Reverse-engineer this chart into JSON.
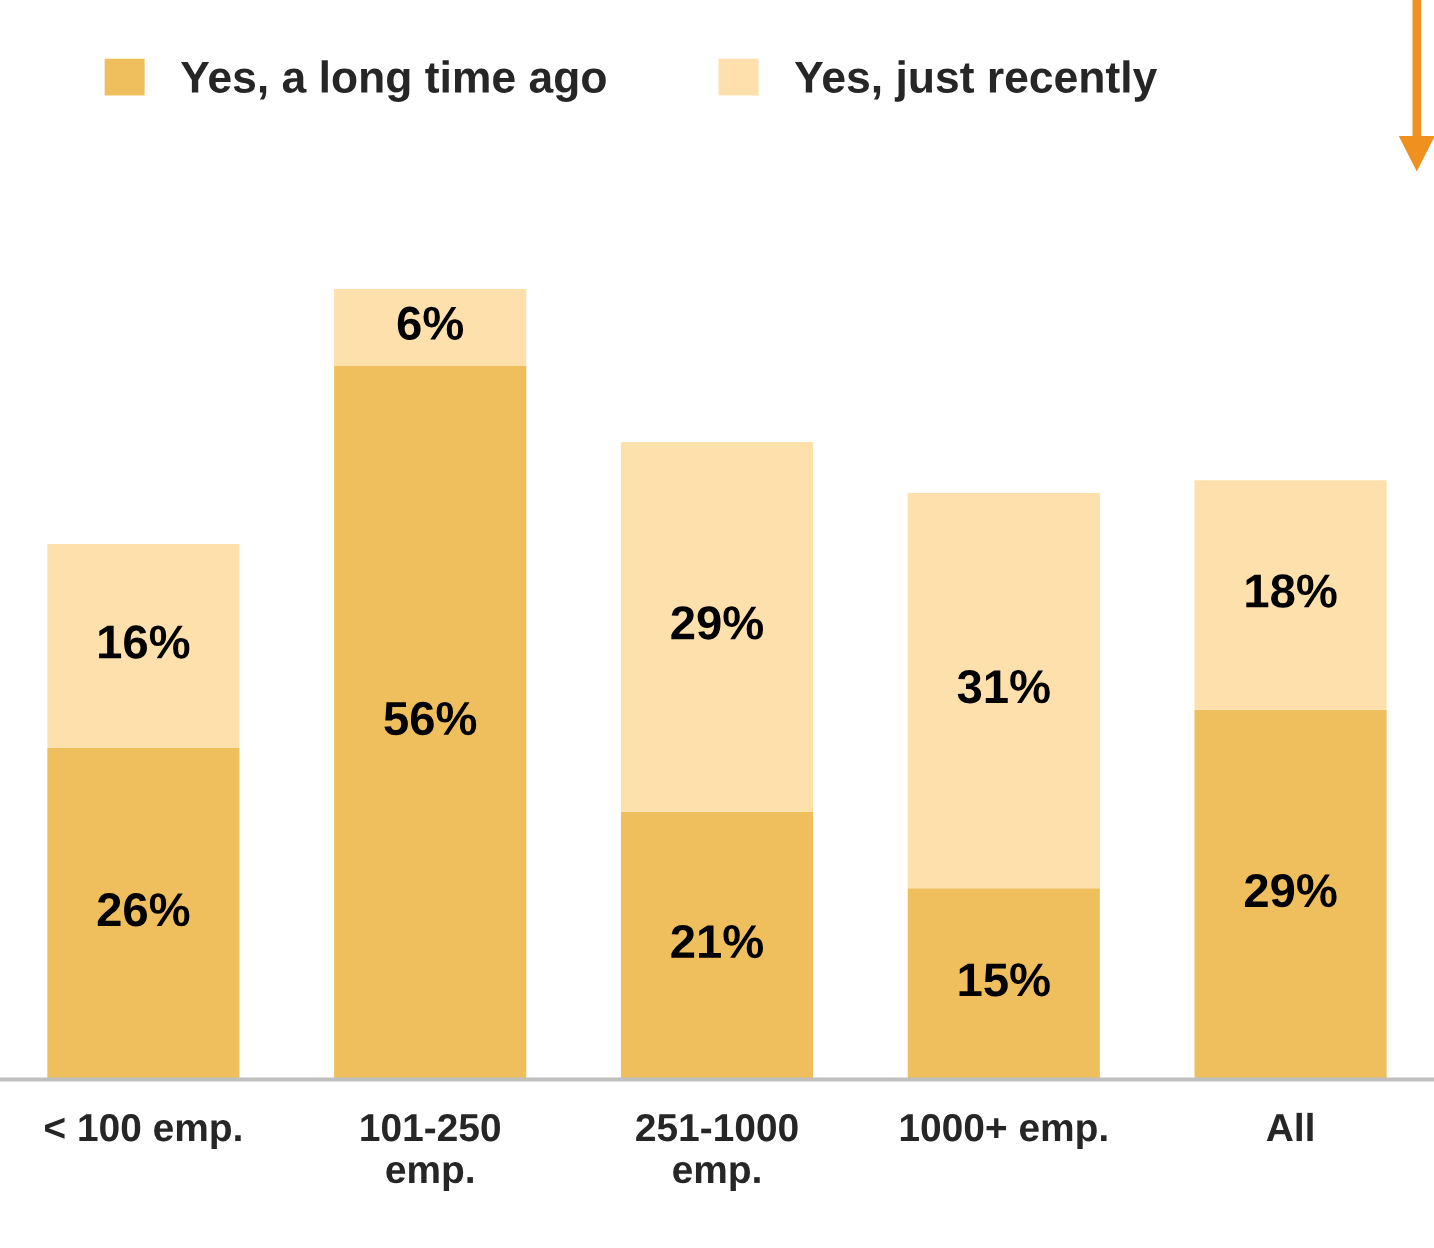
{
  "chart_data": {
    "type": "bar",
    "stacked": true,
    "categories": [
      "< 100 emp.",
      "101-250\nemp.",
      "251-1000\nemp.",
      "1000+ emp.",
      "All"
    ],
    "series": [
      {
        "name": "Yes, a long time ago",
        "color": "#efbf5e",
        "values": [
          26,
          56,
          21,
          15,
          29
        ],
        "value_labels": [
          "26%",
          "56%",
          "21%",
          "15%",
          "29%"
        ]
      },
      {
        "name": "Yes, just recently",
        "color": "#fde0ab",
        "values": [
          16,
          6,
          29,
          31,
          18
        ],
        "value_labels": [
          "16%",
          "6%",
          "29%",
          "31%",
          "18%"
        ]
      }
    ],
    "legend": "top",
    "grid": false
  }
}
